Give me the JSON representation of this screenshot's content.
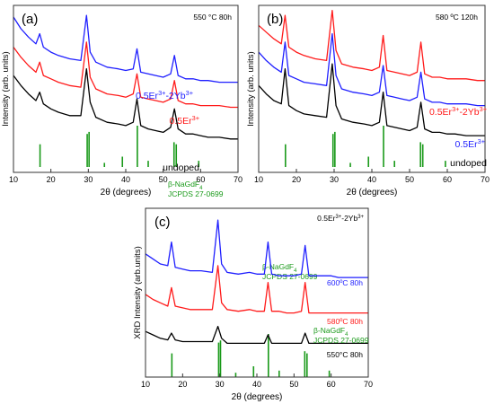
{
  "colors": {
    "black": "#000000",
    "red": "#ff1a1a",
    "blue": "#1f1fff",
    "ref": "#1a9a1a",
    "frame": "#333333"
  },
  "chart_data": [
    {
      "type": "line",
      "panel_label": "(a)",
      "condition": "550 °C 80h",
      "xlabel": "2θ (degrees)",
      "ylabel": "Intensity (arb. units)",
      "xlim": [
        10,
        70
      ],
      "xticks": [
        10,
        20,
        30,
        40,
        50,
        60,
        70
      ],
      "series": [
        {
          "name": "undoped",
          "color": "#000000",
          "peak_scale": 0.7,
          "x": [
            10,
            12,
            14,
            16,
            17,
            18,
            20,
            22,
            25,
            28,
            29.5,
            30.5,
            32,
            35,
            38,
            40,
            42,
            43,
            44,
            46,
            48,
            50,
            52,
            53,
            54,
            56,
            58,
            60,
            62,
            65,
            68,
            70
          ],
          "y": [
            0.58,
            0.52,
            0.47,
            0.43,
            0.48,
            0.41,
            0.38,
            0.36,
            0.34,
            0.34,
            0.62,
            0.42,
            0.33,
            0.3,
            0.29,
            0.28,
            0.3,
            0.44,
            0.28,
            0.26,
            0.25,
            0.24,
            0.27,
            0.38,
            0.26,
            0.23,
            0.23,
            0.22,
            0.21,
            0.21,
            0.2,
            0.2
          ]
        },
        {
          "name": "0.5Er3+",
          "color": "#ff1a1a",
          "peak_scale": 0.7,
          "x": [
            10,
            12,
            14,
            16,
            17,
            18,
            20,
            22,
            25,
            28,
            29.5,
            30.5,
            32,
            35,
            38,
            40,
            42,
            43,
            44,
            46,
            48,
            50,
            52,
            53,
            54,
            56,
            58,
            60,
            62,
            65,
            68,
            70
          ],
          "y": [
            0.75,
            0.69,
            0.64,
            0.6,
            0.66,
            0.58,
            0.56,
            0.54,
            0.52,
            0.51,
            0.78,
            0.57,
            0.5,
            0.47,
            0.46,
            0.45,
            0.47,
            0.59,
            0.45,
            0.44,
            0.43,
            0.42,
            0.44,
            0.55,
            0.43,
            0.41,
            0.41,
            0.4,
            0.4,
            0.4,
            0.39,
            0.39
          ]
        },
        {
          "name": "0.5Er3+-2Yb3+",
          "color": "#1f1fff",
          "peak_scale": 0.7,
          "x": [
            10,
            12,
            14,
            16,
            17,
            18,
            20,
            22,
            25,
            28,
            29.5,
            30.5,
            32,
            35,
            38,
            40,
            42,
            43,
            44,
            46,
            48,
            50,
            52,
            53,
            54,
            56,
            58,
            60,
            62,
            65,
            68,
            70
          ],
          "y": [
            0.93,
            0.86,
            0.81,
            0.77,
            0.83,
            0.75,
            0.72,
            0.7,
            0.68,
            0.67,
            0.94,
            0.72,
            0.66,
            0.63,
            0.62,
            0.61,
            0.62,
            0.74,
            0.6,
            0.59,
            0.58,
            0.57,
            0.59,
            0.7,
            0.58,
            0.56,
            0.56,
            0.55,
            0.55,
            0.54,
            0.54,
            0.54
          ]
        }
      ],
      "reference": {
        "label_line1": "β-NaGdF4",
        "label_line2": "JCPDS 27-0699",
        "x": [
          17.1,
          29.7,
          30.2,
          34.3,
          39.1,
          43.1,
          46.0,
          52.9,
          53.5,
          59.5
        ],
        "h": [
          0.55,
          0.8,
          0.85,
          0.1,
          0.25,
          1.0,
          0.15,
          0.6,
          0.55,
          0.15
        ]
      }
    },
    {
      "type": "line",
      "panel_label": "(b)",
      "condition": "580 ºC 120h",
      "xlabel": "2θ (degrees)",
      "ylabel": "Intensity (arb. units)",
      "xlim": [
        10,
        70
      ],
      "xticks": [
        10,
        20,
        30,
        40,
        50,
        60,
        70
      ],
      "series": [
        {
          "name": "undoped",
          "color": "#000000",
          "peak_scale": 1.0,
          "x": [
            10,
            12,
            14,
            16,
            17,
            18,
            20,
            22,
            25,
            28,
            29.5,
            30.5,
            32,
            35,
            38,
            40,
            42,
            43,
            44,
            46,
            48,
            50,
            52,
            53,
            54,
            56,
            58,
            60,
            62,
            65,
            68,
            70
          ],
          "y": [
            0.52,
            0.47,
            0.43,
            0.41,
            0.62,
            0.4,
            0.37,
            0.35,
            0.34,
            0.33,
            0.65,
            0.4,
            0.32,
            0.3,
            0.29,
            0.28,
            0.3,
            0.48,
            0.28,
            0.27,
            0.26,
            0.25,
            0.27,
            0.42,
            0.26,
            0.24,
            0.24,
            0.23,
            0.23,
            0.22,
            0.22,
            0.22
          ]
        },
        {
          "name": "0.5Er3+",
          "color": "#1f1fff",
          "peak_scale": 1.0,
          "x": [
            10,
            12,
            14,
            16,
            17,
            18,
            20,
            22,
            25,
            28,
            29.5,
            30.5,
            32,
            35,
            38,
            40,
            42,
            43,
            44,
            46,
            48,
            50,
            52,
            53,
            54,
            56,
            58,
            60,
            62,
            65,
            68,
            70
          ],
          "y": [
            0.72,
            0.67,
            0.63,
            0.6,
            0.78,
            0.58,
            0.56,
            0.54,
            0.53,
            0.52,
            0.83,
            0.58,
            0.5,
            0.48,
            0.47,
            0.46,
            0.48,
            0.64,
            0.46,
            0.45,
            0.44,
            0.43,
            0.45,
            0.6,
            0.44,
            0.42,
            0.42,
            0.41,
            0.41,
            0.41,
            0.4,
            0.4
          ]
        },
        {
          "name": "0.5Er3+-2Yb3+",
          "color": "#ff1a1a",
          "peak_scale": 1.0,
          "x": [
            10,
            12,
            14,
            16,
            17,
            18,
            20,
            22,
            25,
            28,
            29.5,
            30.5,
            32,
            35,
            38,
            40,
            42,
            43,
            44,
            46,
            48,
            50,
            52,
            53,
            54,
            56,
            58,
            60,
            62,
            65,
            68,
            70
          ],
          "y": [
            0.88,
            0.84,
            0.8,
            0.77,
            0.94,
            0.75,
            0.72,
            0.7,
            0.68,
            0.67,
            0.97,
            0.73,
            0.65,
            0.63,
            0.62,
            0.61,
            0.63,
            0.82,
            0.61,
            0.6,
            0.59,
            0.58,
            0.6,
            0.78,
            0.59,
            0.57,
            0.57,
            0.56,
            0.56,
            0.56,
            0.55,
            0.55
          ]
        }
      ],
      "reference": {
        "label_line1": "β-NaGdF4",
        "label_line2": "JCPDS 27-0699",
        "x": [
          17.1,
          29.7,
          30.2,
          34.3,
          39.1,
          43.1,
          46.0,
          52.9,
          53.5,
          59.5
        ],
        "h": [
          0.55,
          0.8,
          0.85,
          0.1,
          0.25,
          1.0,
          0.15,
          0.6,
          0.55,
          0.15
        ]
      }
    },
    {
      "type": "line",
      "panel_label": "(c)",
      "condition": "0.5Er3+-2Yb3+",
      "xlabel": "2θ (degrees)",
      "ylabel": "XRD Intensity (arb.units)",
      "xlim": [
        10,
        70
      ],
      "xticks": [
        10,
        20,
        30,
        40,
        50,
        60,
        70
      ],
      "series": [
        {
          "name": "550°C 80h",
          "color": "#000000",
          "peak_scale": 0.8,
          "x": [
            10,
            12,
            14,
            16,
            17,
            18,
            20,
            22,
            25,
            28,
            29.5,
            30.5,
            32,
            35,
            38,
            40,
            42,
            43,
            44,
            46,
            48,
            50,
            52,
            53,
            54,
            56,
            58,
            60,
            62,
            65,
            68,
            70
          ],
          "y": [
            0.27,
            0.25,
            0.23,
            0.22,
            0.26,
            0.22,
            0.21,
            0.21,
            0.21,
            0.21,
            0.3,
            0.23,
            0.2,
            0.2,
            0.2,
            0.2,
            0.2,
            0.25,
            0.2,
            0.2,
            0.2,
            0.2,
            0.2,
            0.26,
            0.2,
            0.2,
            0.2,
            0.2,
            0.2,
            0.2,
            0.2,
            0.2
          ]
        },
        {
          "name": "580ºC 80h",
          "color": "#ff1a1a",
          "peak_scale": 1.0,
          "x": [
            10,
            12,
            14,
            16,
            17,
            18,
            20,
            22,
            25,
            28,
            29.5,
            30.5,
            32,
            35,
            38,
            40,
            42,
            43,
            44,
            46,
            48,
            50,
            52,
            53,
            54,
            56,
            58,
            60,
            62,
            65,
            68,
            70
          ],
          "y": [
            0.49,
            0.46,
            0.44,
            0.42,
            0.53,
            0.42,
            0.41,
            0.4,
            0.4,
            0.4,
            0.66,
            0.44,
            0.4,
            0.39,
            0.4,
            0.39,
            0.39,
            0.56,
            0.39,
            0.39,
            0.38,
            0.38,
            0.39,
            0.56,
            0.38,
            0.38,
            0.38,
            0.38,
            0.38,
            0.38,
            0.38,
            0.38
          ]
        },
        {
          "name": "600ºC 80h",
          "color": "#1f1fff",
          "peak_scale": 1.0,
          "x": [
            10,
            12,
            14,
            16,
            17,
            18,
            20,
            22,
            25,
            28,
            29.5,
            30.5,
            32,
            35,
            38,
            40,
            42,
            43,
            44,
            46,
            48,
            50,
            52,
            53,
            54,
            56,
            58,
            60,
            62,
            65,
            68,
            70
          ],
          "y": [
            0.73,
            0.7,
            0.67,
            0.66,
            0.8,
            0.65,
            0.64,
            0.63,
            0.63,
            0.62,
            0.93,
            0.67,
            0.62,
            0.61,
            0.62,
            0.61,
            0.61,
            0.8,
            0.61,
            0.6,
            0.6,
            0.6,
            0.61,
            0.78,
            0.6,
            0.6,
            0.6,
            0.6,
            0.59,
            0.59,
            0.59,
            0.59
          ]
        }
      ],
      "reference": {
        "label_line1": "β-NaGdF4",
        "label_line2": "JCPDS 27-0699",
        "x": [
          17.1,
          29.7,
          30.2,
          34.3,
          39.1,
          43.1,
          46.0,
          52.9,
          53.5,
          59.5
        ],
        "h": [
          0.55,
          0.8,
          0.85,
          0.1,
          0.25,
          1.0,
          0.15,
          0.6,
          0.55,
          0.15
        ]
      }
    }
  ]
}
